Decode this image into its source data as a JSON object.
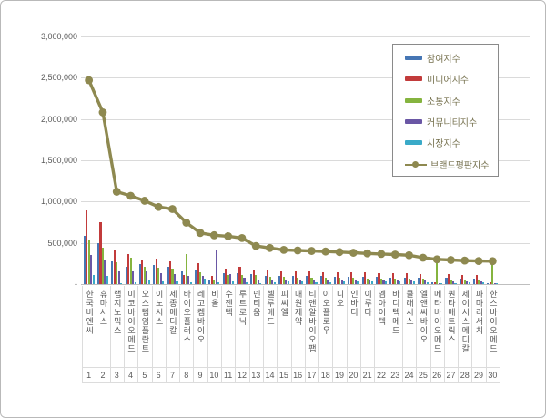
{
  "chart_data": {
    "type": "bar",
    "subtype": "grouped-bars-with-line-overlay",
    "title": "",
    "categories": [
      "한국비엔씨",
      "휴마시스",
      "랩지노믹스",
      "미코바이오메드",
      "오스템임플란트",
      "이노시스",
      "세종메디칼",
      "바이오플러스",
      "레고켐바이오",
      "비올",
      "수젠텍",
      "루트로닉",
      "덴티움",
      "셀루메드",
      "피씨엘",
      "대원제약",
      "티앤알바이오팹",
      "이오플로우",
      "디오",
      "인바디",
      "이루다",
      "엠아이텍",
      "바디텍메드",
      "클래시스",
      "엘앤씨바이오",
      "메타바이오메드",
      "퀀타매트릭스",
      "제이시스메디칼",
      "파마리서치",
      "한스바이오메드"
    ],
    "category_numbers": [
      "1",
      "2",
      "3",
      "4",
      "5",
      "6",
      "7",
      "8",
      "9",
      "10",
      "11",
      "12",
      "13",
      "14",
      "15",
      "16",
      "17",
      "18",
      "19",
      "20",
      "21",
      "22",
      "23",
      "24",
      "25",
      "26",
      "27",
      "28",
      "29",
      "30"
    ],
    "series": [
      {
        "name": "참여지수",
        "key": "participation-index",
        "type": "bar",
        "color": "#4676b4",
        "values": [
          590000,
          500000,
          280000,
          205000,
          240000,
          230000,
          210000,
          155000,
          175000,
          60000,
          130000,
          130000,
          120000,
          100000,
          95000,
          100000,
          95000,
          95000,
          90000,
          88000,
          85000,
          85000,
          82000,
          80000,
          75000,
          20000,
          75000,
          68000,
          65000,
          12000
        ]
      },
      {
        "name": "미디어지수",
        "key": "media-index",
        "type": "bar",
        "color": "#c23b3b",
        "values": [
          890000,
          755000,
          405000,
          360000,
          300000,
          305000,
          275000,
          110000,
          253000,
          100000,
          185000,
          210000,
          180000,
          160000,
          150000,
          155000,
          150000,
          145000,
          145000,
          140000,
          138000,
          135000,
          132000,
          130000,
          120000,
          25000,
          120000,
          112000,
          110000,
          18000
        ]
      },
      {
        "name": "소통지수",
        "key": "communication-index",
        "type": "bar",
        "color": "#85b43f",
        "values": [
          535000,
          445000,
          270000,
          325000,
          215000,
          195000,
          190000,
          360000,
          143000,
          48000,
          115000,
          115000,
          105000,
          90000,
          85000,
          80000,
          80000,
          75000,
          75000,
          72000,
          70000,
          68000,
          66000,
          65000,
          62000,
          300000,
          55000,
          52000,
          50000,
          300000
        ]
      },
      {
        "name": "커뮤니티지수",
        "key": "community-index",
        "type": "bar",
        "color": "#6a57a5",
        "values": [
          350000,
          285000,
          150000,
          155000,
          150000,
          130000,
          120000,
          100000,
          101000,
          420000,
          120000,
          80000,
          40000,
          60000,
          55000,
          60000,
          55000,
          55000,
          50000,
          50000,
          50000,
          48000,
          48000,
          45000,
          43000,
          10000,
          30000,
          33000,
          32000,
          10000
        ]
      },
      {
        "name": "시장지수",
        "key": "market-index",
        "type": "bar",
        "color": "#3aaac8",
        "values": [
          105000,
          95000,
          15000,
          25000,
          45000,
          35000,
          35000,
          25000,
          63000,
          20000,
          30000,
          25000,
          15000,
          25000,
          30000,
          35000,
          25000,
          25000,
          28000,
          30000,
          29000,
          29000,
          30000,
          30000,
          20000,
          8000,
          15000,
          18000,
          18000,
          8000
        ]
      },
      {
        "name": "브랜드평판지수",
        "key": "brand-reputation-index",
        "type": "line",
        "color": "#8e8950",
        "values": [
          2470000,
          2080000,
          1120000,
          1070000,
          1010000,
          935000,
          910000,
          745000,
          620000,
          592000,
          580000,
          558000,
          462000,
          438000,
          415000,
          408000,
          402000,
          395000,
          388000,
          380000,
          372000,
          365000,
          358000,
          350000,
          320000,
          300000,
          292000,
          285000,
          280000,
          278000
        ]
      }
    ],
    "y_axis": {
      "min": 0,
      "max": 3000000,
      "step": 500000,
      "tick_labels": [
        "3,000,000",
        "2,500,000",
        "2,000,000",
        "1,500,000",
        "1,000,000",
        "500,000",
        "-"
      ]
    },
    "legend_position": "top-right",
    "grid": true
  }
}
